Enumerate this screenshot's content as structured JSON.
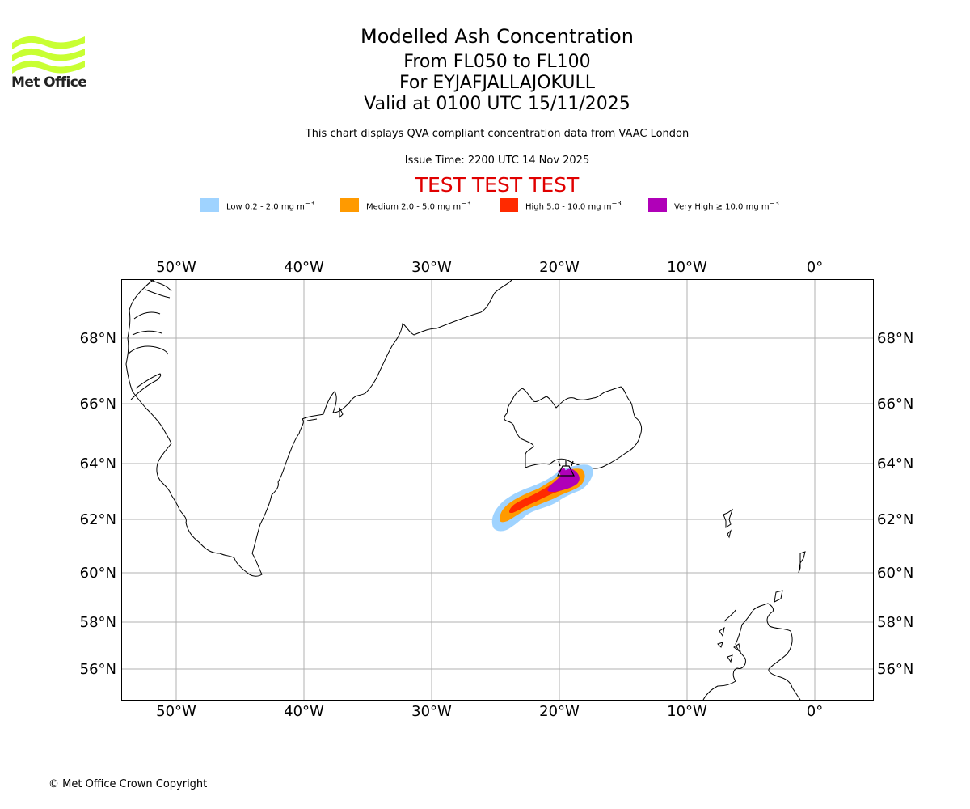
{
  "header": {
    "title": "Modelled Ash Concentration",
    "levels": "From FL050 to FL100",
    "volcano": "For EYJAFJALLAJOKULL",
    "valid": "Valid at 0100 UTC 15/11/2025",
    "compliance": "This chart displays QVA compliant concentration data from VAAC London",
    "issue_time": "Issue Time: 2200 UTC 14 Nov 2025",
    "test_banner": "TEST TEST TEST"
  },
  "logo": {
    "text": "Met Office",
    "color": "#c8ff32"
  },
  "legend": [
    {
      "label": "Low 0.2 - 2.0 mg m",
      "sup": "−3",
      "color": "#9fd3ff"
    },
    {
      "label": "Medium 2.0 - 5.0 mg m",
      "sup": "−3",
      "color": "#ff9a00"
    },
    {
      "label": "High 5.0 - 10.0 mg m",
      "sup": "−3",
      "color": "#ff2a00"
    },
    {
      "label": "Very High ≥ 10.0 mg m",
      "sup": "−3",
      "color": "#b000b8"
    }
  ],
  "map": {
    "lon_labels": [
      "50°W",
      "40°W",
      "30°W",
      "20°W",
      "10°W",
      "0°"
    ],
    "lat_labels": [
      "68°N",
      "66°N",
      "64°N",
      "62°N",
      "60°N",
      "58°N",
      "56°N"
    ],
    "grid": true
  },
  "footer": {
    "copyright": "© Met Office Crown Copyright"
  }
}
